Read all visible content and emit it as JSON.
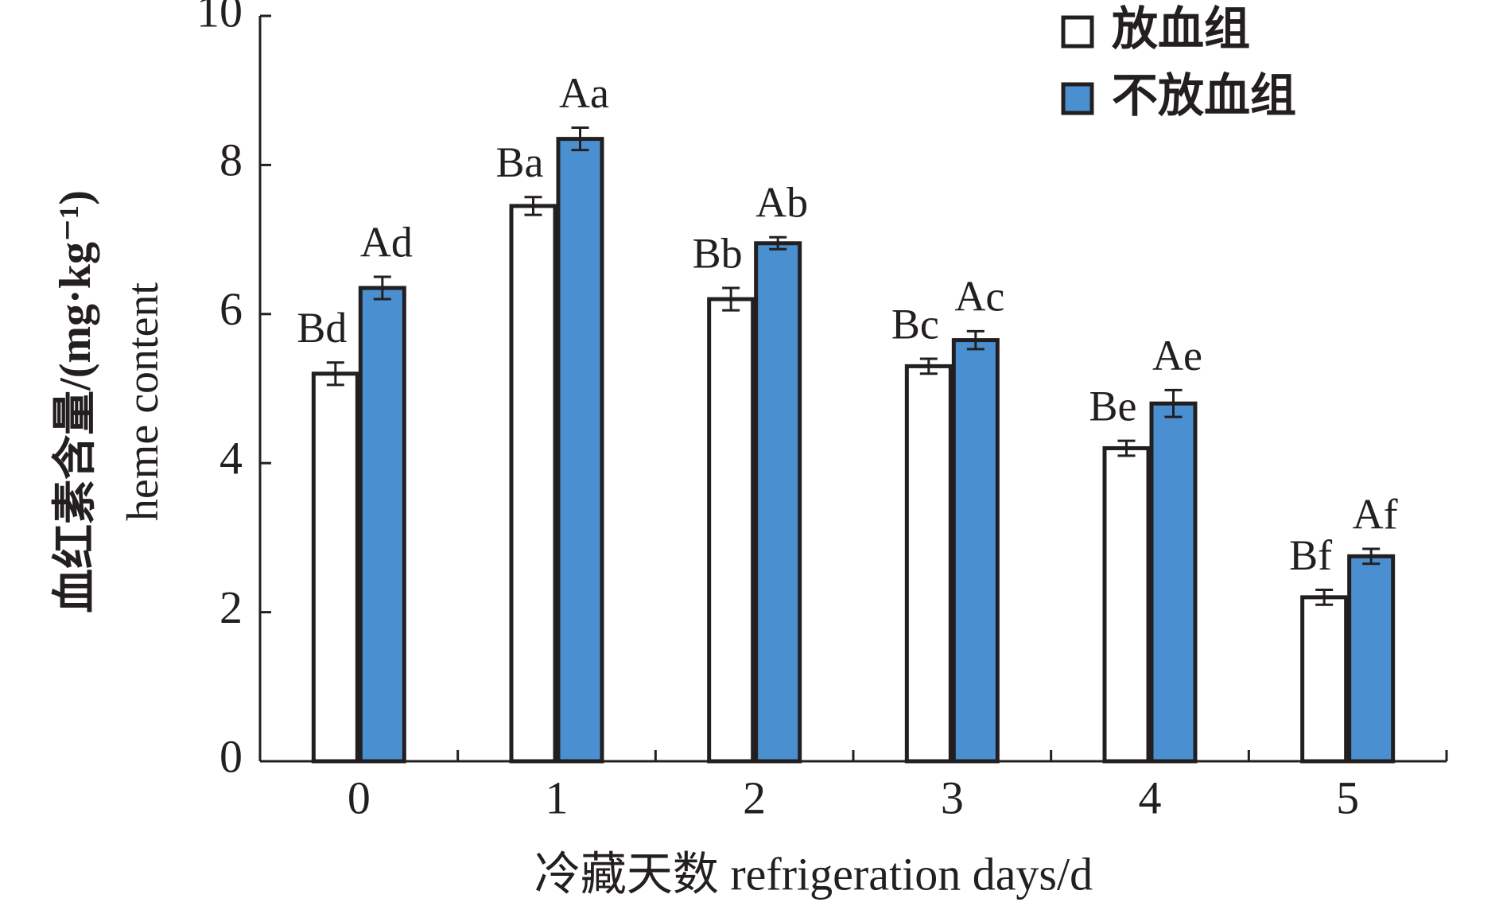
{
  "chart_data": {
    "type": "bar",
    "x_label": "冷藏天数 refrigeration days/d",
    "y_label": [
      "血红素含量/(mg·kg⁻¹)",
      "heme content"
    ],
    "categories": [
      "0",
      "1",
      "2",
      "3",
      "4",
      "5"
    ],
    "series": [
      {
        "name": "放血组",
        "color": "#ffffff",
        "values": [
          5.2,
          7.45,
          6.2,
          5.3,
          4.2,
          2.2
        ],
        "errors": [
          0.15,
          0.12,
          0.15,
          0.1,
          0.1,
          0.1
        ],
        "labels": [
          "Bd",
          "Ba",
          "Bb",
          "Bc",
          "Be",
          "Bf"
        ]
      },
      {
        "name": "不放血组",
        "color": "#4a90d0",
        "values": [
          6.35,
          8.35,
          6.95,
          5.65,
          4.8,
          2.75
        ],
        "errors": [
          0.15,
          0.15,
          0.08,
          0.12,
          0.18,
          0.1
        ],
        "labels": [
          "Ad",
          "Aa",
          "Ab",
          "Ac",
          "Ae",
          "Af"
        ]
      }
    ],
    "ylim": [
      0,
      10
    ],
    "yticks": [
      0,
      2,
      4,
      6,
      8,
      10
    ],
    "legend": "top-right"
  }
}
